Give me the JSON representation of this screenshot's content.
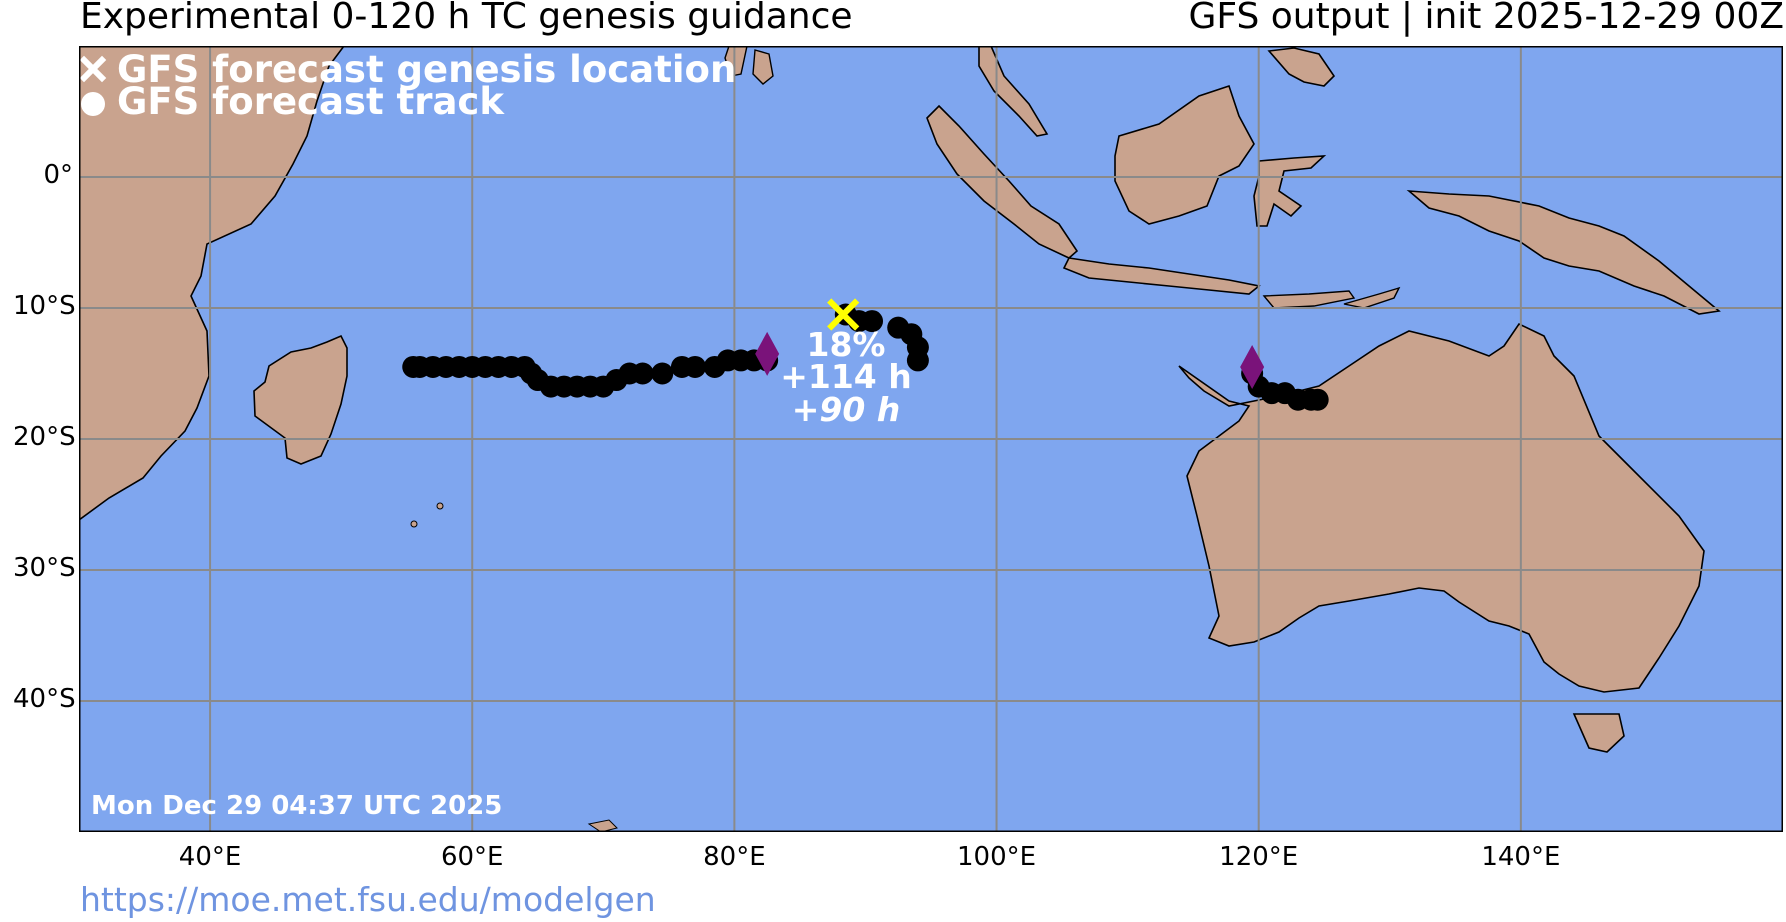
{
  "header": {
    "title_left": "Experimental 0-120 h TC genesis guidance",
    "title_right": "GFS output | init 2025-12-29 00Z"
  },
  "legend": {
    "genesis_label": "GFS forecast genesis location",
    "track_label": "GFS forecast track"
  },
  "timestamp": "Mon Dec 29 04:37 UTC 2025",
  "source_url": "https://moe.met.fsu.edu/modelgen",
  "axes": {
    "lat_labels": [
      "0°",
      "10°S",
      "20°S",
      "30°S",
      "40°S"
    ],
    "lon_labels": [
      "40°E",
      "60°E",
      "80°E",
      "100°E",
      "120°E",
      "140°E"
    ]
  },
  "annotation": {
    "probability": "18%",
    "lead_time": "+114 h",
    "lead_time_alt": "+90 h"
  },
  "colors": {
    "ocean": "#7fa6ef",
    "land": "#c9a38e",
    "grid": "#8a8a8a",
    "track": "#000000",
    "genesis_marker": "#ffff00",
    "diamond": "#7a137a",
    "link": "#6f94e0"
  },
  "map": {
    "extent_lon": [
      30,
      160
    ],
    "extent_lat": [
      -50,
      10
    ],
    "tracks": [
      {
        "points": [
          [
            82.5,
            -14
          ],
          [
            81.5,
            -14
          ],
          [
            80.5,
            -14
          ],
          [
            79.5,
            -14
          ],
          [
            78.5,
            -14.5
          ],
          [
            77,
            -14.5
          ],
          [
            76,
            -14.5
          ],
          [
            74.5,
            -15
          ],
          [
            73,
            -15
          ],
          [
            72,
            -15
          ],
          [
            71,
            -15.5
          ],
          [
            70,
            -16
          ],
          [
            69,
            -16
          ],
          [
            68,
            -16
          ],
          [
            67,
            -16
          ],
          [
            66,
            -16
          ],
          [
            65,
            -15.5
          ],
          [
            64.5,
            -15
          ],
          [
            64,
            -14.5
          ],
          [
            63,
            -14.5
          ],
          [
            62,
            -14.5
          ],
          [
            61,
            -14.5
          ],
          [
            60,
            -14.5
          ],
          [
            59,
            -14.5
          ],
          [
            58,
            -14.5
          ],
          [
            57,
            -14.5
          ],
          [
            56,
            -14.5
          ],
          [
            55.5,
            -14.5
          ]
        ],
        "start_marker": [
          82.5,
          -13.5
        ]
      },
      {
        "points": [
          [
            88.5,
            -10.5
          ],
          [
            89.5,
            -11
          ],
          [
            90.5,
            -11
          ],
          [
            92.5,
            -11.5
          ],
          [
            93.5,
            -12
          ],
          [
            94,
            -13
          ],
          [
            94,
            -14
          ]
        ],
        "genesis_marker": [
          88.3,
          -10.5
        ]
      },
      {
        "points": [
          [
            119.5,
            -15
          ],
          [
            120,
            -16
          ],
          [
            121,
            -16.5
          ],
          [
            122,
            -16.5
          ],
          [
            123,
            -17
          ],
          [
            124,
            -17
          ],
          [
            124.5,
            -17
          ]
        ],
        "start_marker": [
          119.5,
          -14.5
        ]
      }
    ]
  }
}
